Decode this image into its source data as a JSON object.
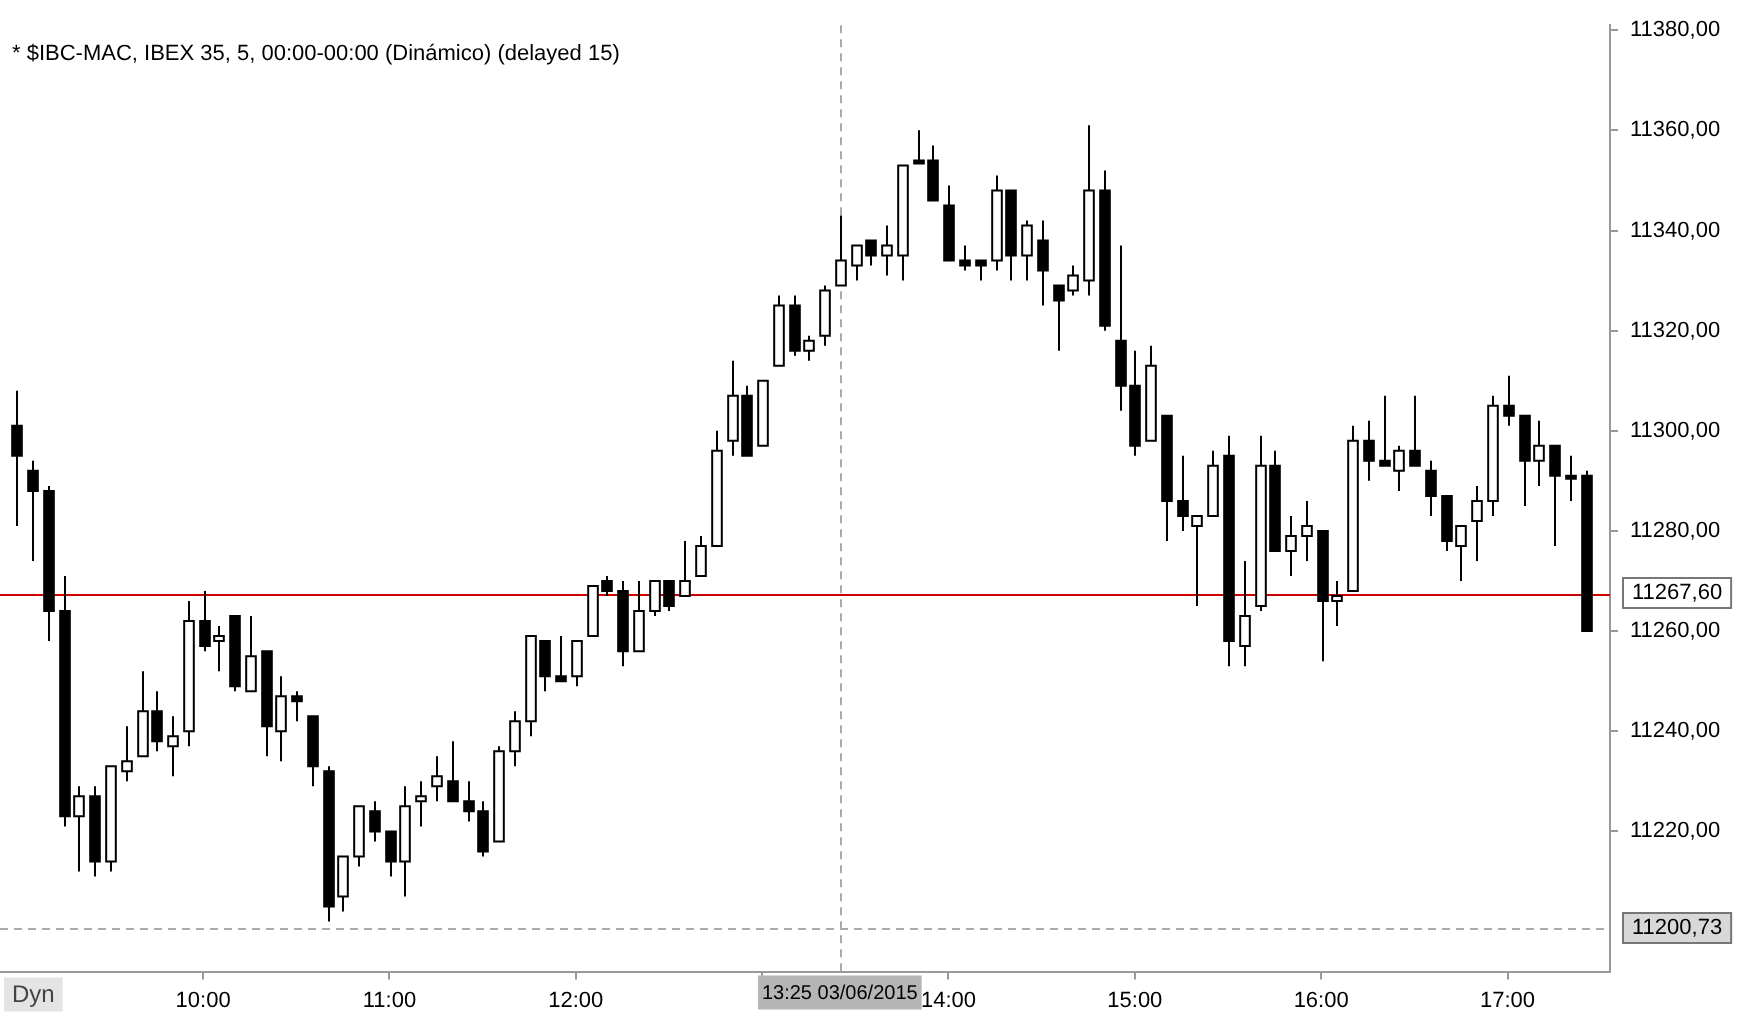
{
  "chart_data": {
    "type": "candlestick",
    "title": "* $IBC-MAC, IBEX 35, 5, 00:00-00:00 (Dinámico) (delayed 15)",
    "color": "#000000",
    "grid": false,
    "legend": false,
    "annotations": [
      "Dyn"
    ],
    "colors": [
      "#000000",
      "#000000",
      "#000000",
      "#000000",
      "#ffffff",
      "#000000",
      "#ffffff",
      "#ffffff",
      "#ffffff",
      "#000000",
      "#ffffff",
      "#ffffff",
      "#000000",
      "#ffffff",
      "#000000",
      "#ffffff",
      "#000000",
      "#ffffff",
      "#000000",
      "#000000",
      "#000000",
      "#ffffff",
      "#ffffff",
      "#000000",
      "#000000",
      "#ffffff",
      "#ffffff",
      "#ffffff",
      "#000000",
      "#000000",
      "#000000",
      "#ffffff",
      "#ffffff",
      "#ffffff",
      "#000000",
      "#000000",
      "#ffffff",
      "#ffffff",
      "#000000",
      "#000000",
      "#ffffff",
      "#ffffff",
      "#000000",
      "#ffffff",
      "#ffffff",
      "#ffffff",
      "#ffffff",
      "#000000",
      "#ffffff",
      "#ffffff",
      "#000000",
      "#ffffff",
      "#ffffff",
      "#ffffff",
      "#ffffff",
      "#000000",
      "#ffffff",
      "#ffffff",
      "#000000",
      "#000000",
      "#000000",
      "#000000",
      "#000000",
      "#ffffff",
      "#000000",
      "#ffffff",
      "#000000",
      "#000000",
      "#ffffff",
      "#ffffff",
      "#000000",
      "#000000",
      "#000000",
      "#ffffff",
      "#000000",
      "#000000",
      "#ffffff",
      "#ffffff",
      "#000000",
      "#ffffff",
      "#ffffff",
      "#000000",
      "#ffffff",
      "#ffffff",
      "#000000",
      "#ffffff",
      "#ffffff",
      "#000000",
      "#000000",
      "#ffffff",
      "#000000",
      "#000000",
      "#000000",
      "#ffffff",
      "#ffffff",
      "#ffffff",
      "#000000",
      "#000000",
      "#ffffff",
      "#000000",
      "#000000",
      "#000000"
    ],
    "xlim": [
      8.91,
      17.55
    ],
    "xticks": [
      {
        "value": 10,
        "label": "10:00"
      },
      {
        "value": 11,
        "label": "11:00"
      },
      {
        "value": 12,
        "label": "12:00"
      },
      {
        "value": 13,
        "label": null
      },
      {
        "value": 14,
        "label": "14:00"
      },
      {
        "value": 15,
        "label": "15:00"
      },
      {
        "value": 16,
        "label": "16:00"
      },
      {
        "value": 17,
        "label": "17:00"
      }
    ],
    "ylim": [
      11192,
      11381
    ],
    "yticks": [
      {
        "value": 11220,
        "label": "11220,00"
      },
      {
        "value": 11240,
        "label": "11240,00"
      },
      {
        "value": 11260,
        "label": "11260,00"
      },
      {
        "value": 11280,
        "label": "11280,00"
      },
      {
        "value": 11300,
        "label": "11300,00"
      },
      {
        "value": 11320,
        "label": "11320,00"
      },
      {
        "value": 11340,
        "label": "11340,00"
      },
      {
        "value": 11360,
        "label": "11360,00"
      },
      {
        "value": 11380,
        "label": "11380,00"
      }
    ],
    "ref_lines": [
      {
        "axis": "y",
        "value": 11267.6,
        "label": "11267,60",
        "color": "#cc0000"
      },
      {
        "axis": "y",
        "value": 11200.73,
        "label": "11200,73",
        "color": "#aaaaaa",
        "line_style": "dashed"
      },
      {
        "axis": "x",
        "value": 13.4167,
        "label": "13:25 03/06/2015",
        "color": "#aaaaaa",
        "line_style": "dashed"
      }
    ],
    "x": [
      9,
      9.0833,
      9.1667,
      9.25,
      9.3333,
      9.4167,
      9.5,
      9.5833,
      9.6667,
      9.75,
      9.8333,
      9.9167,
      10,
      10.0833,
      10.1667,
      10.25,
      10.3333,
      10.4167,
      10.5,
      10.5833,
      10.6667,
      10.75,
      10.8333,
      10.9167,
      11,
      11.0833,
      11.1667,
      11.25,
      11.3333,
      11.4167,
      11.5,
      11.5833,
      11.6667,
      11.75,
      11.8333,
      11.9167,
      12,
      12.0833,
      12.1667,
      12.25,
      12.3333,
      12.4167,
      12.5,
      12.5833,
      12.6667,
      12.75,
      12.8333,
      12.9167,
      13,
      13.0833,
      13.1667,
      13.25,
      13.3333,
      13.4167,
      13.5,
      13.5833,
      13.6667,
      13.75,
      13.8333,
      13.9167,
      14,
      14.0833,
      14.1667,
      14.25,
      14.3333,
      14.4167,
      14.5,
      14.5833,
      14.6667,
      14.75,
      14.8333,
      14.9167,
      15,
      15.0833,
      15.1667,
      15.25,
      15.3333,
      15.4167,
      15.5,
      15.5833,
      15.6667,
      15.75,
      15.8333,
      15.9167,
      16,
      16.0833,
      16.1667,
      16.25,
      16.3333,
      16.4167,
      16.5,
      16.5833,
      16.6667,
      16.75,
      16.8333,
      16.9167,
      17,
      17.0833,
      17.1667,
      17.25,
      17.3333,
      17.4167
    ],
    "ohlc": [
      [
        11301,
        11308,
        11281,
        11295
      ],
      [
        11292,
        11294,
        11274,
        11288
      ],
      [
        11288,
        11289,
        11258,
        11264
      ],
      [
        11264,
        11271,
        11221,
        11223
      ],
      [
        11223,
        11229,
        11212,
        11227
      ],
      [
        11227,
        11229,
        11211,
        11214
      ],
      [
        11214,
        11233,
        11212,
        11233
      ],
      [
        11232,
        11241,
        11230,
        11234
      ],
      [
        11235,
        11252,
        11235,
        11244
      ],
      [
        11244,
        11248,
        11236,
        11238
      ],
      [
        11237,
        11243,
        11231,
        11239
      ],
      [
        11240,
        11266,
        11237,
        11262
      ],
      [
        11262,
        11268,
        11256,
        11257
      ],
      [
        11258,
        11261,
        11252,
        11259
      ],
      [
        11263,
        11263,
        11248,
        11249
      ],
      [
        11248,
        11263,
        11248,
        11255
      ],
      [
        11256,
        11256,
        11235,
        11241
      ],
      [
        11240,
        11251,
        11234,
        11247
      ],
      [
        11247,
        11248,
        11242,
        11246
      ],
      [
        11243,
        11243,
        11229,
        11233
      ],
      [
        11232,
        11233,
        11202,
        11205
      ],
      [
        11207,
        11215,
        11204,
        11215
      ],
      [
        11215,
        11225,
        11213,
        11225
      ],
      [
        11224,
        11226,
        11218,
        11220
      ],
      [
        11220,
        11220,
        11211,
        11214
      ],
      [
        11214,
        11229,
        11207,
        11225
      ],
      [
        11226,
        11230,
        11221,
        11227
      ],
      [
        11229,
        11235,
        11226,
        11231
      ],
      [
        11230,
        11238,
        11226,
        11226
      ],
      [
        11226,
        11230,
        11222,
        11224
      ],
      [
        11224,
        11226,
        11215,
        11216
      ],
      [
        11218,
        11237,
        11218,
        11236
      ],
      [
        11236,
        11244,
        11233,
        11242
      ],
      [
        11242,
        11259,
        11239,
        11259
      ],
      [
        11258,
        11258,
        11248,
        11251
      ],
      [
        11251,
        11259,
        11250,
        11250
      ],
      [
        11251,
        11258,
        11249,
        11258
      ],
      [
        11259,
        11269,
        11259,
        11269
      ],
      [
        11270,
        11271,
        11267,
        11268
      ],
      [
        11268,
        11270,
        11253,
        11256
      ],
      [
        11256,
        11270,
        11256,
        11264
      ],
      [
        11264,
        11270,
        11263,
        11270
      ],
      [
        11270,
        11270,
        11264,
        11265
      ],
      [
        11267,
        11278,
        11267,
        11270
      ],
      [
        11271,
        11279,
        11271,
        11277
      ],
      [
        11277,
        11300,
        11277,
        11296
      ],
      [
        11298,
        11314,
        11295,
        11307
      ],
      [
        11307,
        11309,
        11295,
        11295
      ],
      [
        11297,
        11310,
        11297,
        11310
      ],
      [
        11313,
        11327,
        11313,
        11325
      ],
      [
        11325,
        11327,
        11315,
        11316
      ],
      [
        11316,
        11319,
        11314,
        11318
      ],
      [
        11319,
        11329,
        11317,
        11328
      ],
      [
        11329,
        11343,
        11329,
        11334
      ],
      [
        11333,
        11337,
        11330,
        11337
      ],
      [
        11338,
        11338,
        11333,
        11335
      ],
      [
        11335,
        11341,
        11331,
        11337
      ],
      [
        11335,
        11353,
        11330,
        11353
      ],
      [
        11354,
        11360,
        11354,
        11354
      ],
      [
        11354,
        11357,
        11346,
        11346
      ],
      [
        11345,
        11349,
        11334,
        11334
      ],
      [
        11334,
        11337,
        11332,
        11333
      ],
      [
        11334,
        11334,
        11330,
        11333
      ],
      [
        11334,
        11351,
        11332,
        11348
      ],
      [
        11348,
        11348,
        11330,
        11335
      ],
      [
        11335,
        11342,
        11330,
        11341
      ],
      [
        11338,
        11342,
        11325,
        11332
      ],
      [
        11329,
        11329,
        11316,
        11326
      ],
      [
        11328,
        11333,
        11327,
        11331
      ],
      [
        11330,
        11361,
        11327,
        11348
      ],
      [
        11348,
        11352,
        11320,
        11321
      ],
      [
        11318,
        11337,
        11304,
        11309
      ],
      [
        11309,
        11316,
        11295,
        11297
      ],
      [
        11298,
        11317,
        11298,
        11313
      ],
      [
        11303,
        11303,
        11278,
        11286
      ],
      [
        11286,
        11295,
        11280,
        11283
      ],
      [
        11281,
        11283,
        11265,
        11283
      ],
      [
        11283,
        11296,
        11283,
        11293
      ],
      [
        11295,
        11299,
        11253,
        11258
      ],
      [
        11257,
        11274,
        11253,
        11263
      ],
      [
        11265,
        11299,
        11264,
        11293
      ],
      [
        11293,
        11296,
        11276,
        11276
      ],
      [
        11276,
        11283,
        11271,
        11279
      ],
      [
        11279,
        11286,
        11274,
        11281
      ],
      [
        11280,
        11280,
        11254,
        11266
      ],
      [
        11266,
        11270,
        11261,
        11267
      ],
      [
        11268,
        11301,
        11268,
        11298
      ],
      [
        11298,
        11302,
        11290,
        11294
      ],
      [
        11294,
        11307,
        11293,
        11293
      ],
      [
        11292,
        11297,
        11288,
        11296
      ],
      [
        11296,
        11307,
        11293,
        11293
      ],
      [
        11292,
        11294,
        11283,
        11287
      ],
      [
        11287,
        11287,
        11276,
        11278
      ],
      [
        11277,
        11281,
        11270,
        11281
      ],
      [
        11282,
        11289,
        11274,
        11286
      ],
      [
        11286,
        11307,
        11283,
        11305
      ],
      [
        11305,
        11311,
        11301,
        11303
      ],
      [
        11303,
        11303,
        11285,
        11294
      ],
      [
        11294,
        11302,
        11289,
        11297
      ],
      [
        11297,
        11297,
        11277,
        11291
      ],
      [
        11291,
        11295,
        11286,
        11291
      ],
      [
        11291,
        11292,
        11260,
        11260
      ]
    ]
  }
}
